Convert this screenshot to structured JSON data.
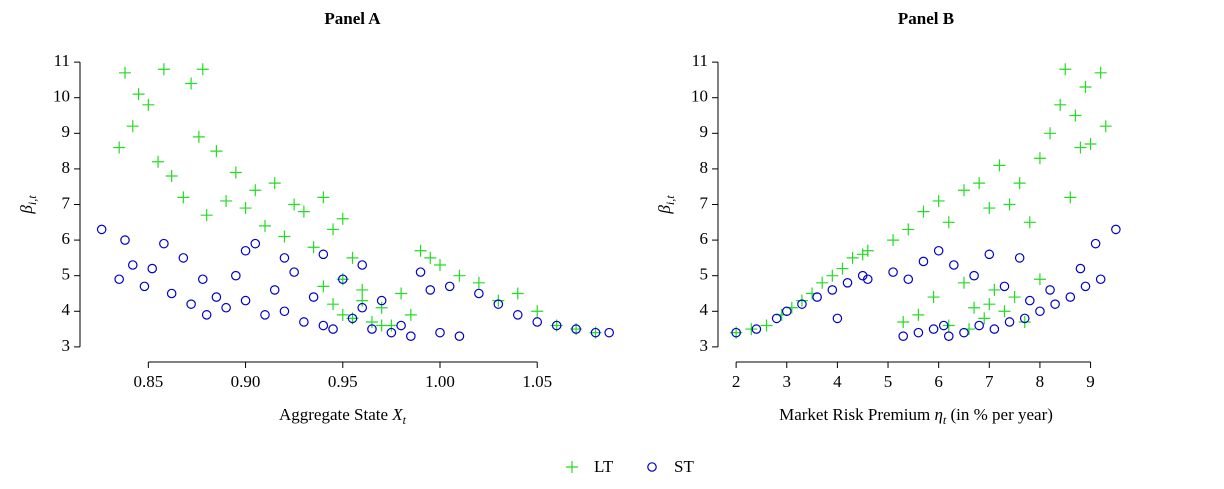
{
  "chart_data": [
    {
      "type": "scatter",
      "title": "Panel A",
      "xlabel": [
        "Aggregate State ",
        "X",
        "t"
      ],
      "ylabel": [
        "β",
        "i,t"
      ],
      "xlim": [
        0.82,
        1.09
      ],
      "xticks": [
        0.85,
        0.9,
        0.95,
        1.0,
        1.05
      ],
      "xtick_labels": [
        "0.85",
        "0.90",
        "0.95",
        "1.00",
        "1.05"
      ],
      "ylim": [
        2.8,
        11.2
      ],
      "yticks": [
        3,
        4,
        5,
        6,
        7,
        8,
        9,
        10,
        11
      ],
      "series": [
        {
          "name": "LT",
          "color": "#22dd22",
          "marker": "plus",
          "x": [
            0.835,
            0.838,
            0.842,
            0.845,
            0.85,
            0.855,
            0.858,
            0.862,
            0.868,
            0.872,
            0.876,
            0.878,
            0.88,
            0.885,
            0.89,
            0.895,
            0.9,
            0.905,
            0.91,
            0.915,
            0.92,
            0.925,
            0.93,
            0.935,
            0.94,
            0.945,
            0.95,
            0.955,
            0.94,
            0.945,
            0.95,
            0.955,
            0.96,
            0.965,
            0.97,
            0.975,
            0.98,
            0.985,
            0.99,
            0.995,
            1.0,
            1.01,
            1.02,
            1.03,
            1.04,
            1.05,
            1.06,
            1.07,
            1.08,
            0.95,
            0.96,
            0.97
          ],
          "values": [
            8.6,
            10.7,
            9.2,
            10.1,
            9.8,
            8.2,
            10.8,
            7.8,
            7.2,
            10.4,
            8.9,
            10.8,
            6.7,
            8.5,
            7.1,
            7.9,
            6.9,
            7.4,
            6.4,
            7.6,
            6.1,
            7.0,
            6.8,
            5.8,
            7.2,
            6.3,
            6.6,
            5.5,
            4.7,
            4.2,
            4.9,
            3.8,
            4.3,
            3.7,
            4.1,
            3.6,
            4.5,
            3.9,
            5.7,
            5.5,
            5.3,
            5.0,
            4.8,
            4.3,
            4.5,
            4.0,
            3.6,
            3.5,
            3.4,
            3.9,
            4.6,
            3.6
          ]
        },
        {
          "name": "ST",
          "color": "#0000cc",
          "marker": "circle",
          "x": [
            0.826,
            0.835,
            0.838,
            0.842,
            0.848,
            0.852,
            0.858,
            0.862,
            0.868,
            0.872,
            0.878,
            0.885,
            0.89,
            0.895,
            0.9,
            0.905,
            0.91,
            0.915,
            0.92,
            0.925,
            0.93,
            0.935,
            0.94,
            0.945,
            0.95,
            0.955,
            0.96,
            0.965,
            0.97,
            0.975,
            0.98,
            0.985,
            0.99,
            0.995,
            1.0,
            1.005,
            1.01,
            1.02,
            1.03,
            1.04,
            1.05,
            1.06,
            1.07,
            1.08,
            1.087,
            0.92,
            0.94,
            0.9,
            0.96,
            0.88
          ],
          "values": [
            6.3,
            4.9,
            6.0,
            5.3,
            4.7,
            5.2,
            5.9,
            4.5,
            5.5,
            4.2,
            4.9,
            4.4,
            4.1,
            5.0,
            4.3,
            5.9,
            3.9,
            4.6,
            4.0,
            5.1,
            3.7,
            4.4,
            5.6,
            3.5,
            4.9,
            3.8,
            5.3,
            3.5,
            4.3,
            3.4,
            3.6,
            3.3,
            5.1,
            4.6,
            3.4,
            4.7,
            3.3,
            4.5,
            4.2,
            3.9,
            3.7,
            3.6,
            3.5,
            3.4,
            3.4,
            5.5,
            3.6,
            5.7,
            4.1,
            3.9
          ]
        }
      ]
    },
    {
      "type": "scatter",
      "title": "Panel B",
      "xlabel": [
        "Market Risk Premium ",
        "η",
        "t",
        " (in % per year)"
      ],
      "ylabel": [
        "β",
        "i,t"
      ],
      "xlim": [
        1.8,
        9.7
      ],
      "xticks": [
        2,
        3,
        4,
        5,
        6,
        7,
        8,
        9
      ],
      "ylim": [
        2.8,
        11.2
      ],
      "yticks": [
        3,
        4,
        5,
        6,
        7,
        8,
        9,
        10,
        11
      ],
      "series": [
        {
          "name": "LT",
          "color": "#22dd22",
          "marker": "plus",
          "x": [
            2.0,
            2.3,
            2.6,
            2.9,
            3.1,
            3.3,
            3.5,
            3.7,
            3.9,
            4.1,
            4.3,
            4.5,
            4.6,
            5.1,
            5.4,
            5.7,
            6.0,
            6.2,
            6.5,
            6.8,
            7.0,
            7.2,
            7.4,
            7.6,
            7.8,
            8.0,
            8.2,
            8.4,
            8.5,
            8.7,
            8.9,
            9.0,
            9.2,
            9.3,
            8.6,
            8.8,
            5.3,
            5.6,
            5.9,
            6.2,
            6.5,
            6.7,
            6.9,
            7.1,
            7.3,
            7.5,
            7.7,
            8.0,
            6.6,
            7.0
          ],
          "values": [
            3.4,
            3.5,
            3.6,
            3.9,
            4.1,
            4.3,
            4.5,
            4.8,
            5.0,
            5.2,
            5.5,
            5.6,
            5.7,
            6.0,
            6.3,
            6.8,
            7.1,
            6.5,
            7.4,
            7.6,
            6.9,
            8.1,
            7.0,
            7.6,
            6.5,
            8.3,
            9.0,
            9.8,
            10.8,
            9.5,
            10.3,
            8.7,
            10.7,
            9.2,
            7.2,
            8.6,
            3.7,
            3.9,
            4.4,
            3.6,
            4.8,
            4.1,
            3.8,
            4.6,
            4.0,
            4.4,
            3.7,
            4.9,
            3.5,
            4.2
          ]
        },
        {
          "name": "ST",
          "color": "#0000cc",
          "marker": "circle",
          "x": [
            2.0,
            2.4,
            2.8,
            3.0,
            3.3,
            3.6,
            3.9,
            4.2,
            4.5,
            4.6,
            4.0,
            5.1,
            5.4,
            5.7,
            6.0,
            6.3,
            6.7,
            7.0,
            7.3,
            7.6,
            5.3,
            5.6,
            5.9,
            6.2,
            6.5,
            6.8,
            7.1,
            7.4,
            7.7,
            8.0,
            8.3,
            8.6,
            8.9,
            9.2,
            9.5,
            8.8,
            9.1,
            8.2,
            7.8,
            6.1
          ],
          "values": [
            3.4,
            3.5,
            3.8,
            4.0,
            4.2,
            4.4,
            4.6,
            4.8,
            5.0,
            4.9,
            3.8,
            5.1,
            4.9,
            5.4,
            5.7,
            5.3,
            5.0,
            5.6,
            4.7,
            5.5,
            3.3,
            3.4,
            3.5,
            3.3,
            3.4,
            3.6,
            3.5,
            3.7,
            3.8,
            4.0,
            4.2,
            4.4,
            4.7,
            4.9,
            6.3,
            5.2,
            5.9,
            4.6,
            4.3,
            3.6
          ]
        }
      ]
    }
  ]
}
